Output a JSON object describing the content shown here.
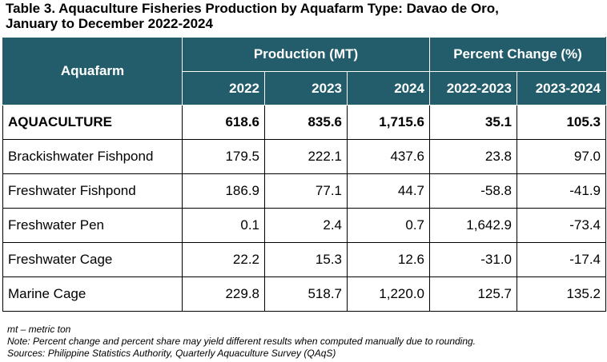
{
  "title_line1": "Table 3. Aquaculture Fisheries Production by Aquafarm Type: Davao de Oro,",
  "title_line2": "January to December 2022-2024",
  "header": {
    "aquafarm": "Aquafarm",
    "production": "Production (MT)",
    "percent_change": "Percent Change (%)",
    "years": [
      "2022",
      "2023",
      "2024",
      "2022-2023",
      "2023-2024"
    ]
  },
  "rows": [
    {
      "name": "AQUACULTURE",
      "v2022": "618.6",
      "v2023": "835.6",
      "v2024": "1,715.6",
      "pc1": "35.1",
      "pc2": "105.3"
    },
    {
      "name": "Brackishwater Fishpond",
      "v2022": "179.5",
      "v2023": "222.1",
      "v2024": "437.6",
      "pc1": "23.8",
      "pc2": "97.0"
    },
    {
      "name": "Freshwater Fishpond",
      "v2022": "186.9",
      "v2023": "77.1",
      "v2024": "44.7",
      "pc1": "-58.8",
      "pc2": "-41.9"
    },
    {
      "name": "Freshwater Pen",
      "v2022": "0.1",
      "v2023": "2.4",
      "v2024": "0.7",
      "pc1": "1,642.9",
      "pc2": "-73.4"
    },
    {
      "name": "Freshwater Cage",
      "v2022": "22.2",
      "v2023": "15.3",
      "v2024": "12.6",
      "pc1": "-31.0",
      "pc2": "-17.4"
    },
    {
      "name": "Marine Cage",
      "v2022": "229.8",
      "v2023": "518.7",
      "v2024": "1,220.0",
      "pc1": "125.7",
      "pc2": "135.2"
    }
  ],
  "notes": {
    "abbr": "mt – metric ton",
    "note": "Note: Percent change and percent share may yield different results when computed manually due to rounding.",
    "source": "Sources: Philippine Statistics Authority, Quarterly Aquaculture Survey (QAqS)"
  }
}
